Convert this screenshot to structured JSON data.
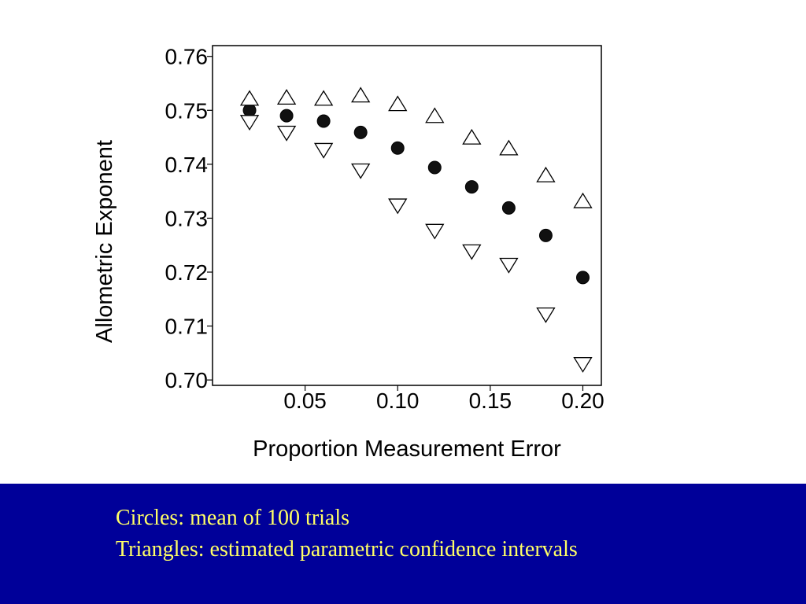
{
  "chart_data": {
    "type": "scatter",
    "title": "",
    "xlabel": "Proportion Measurement Error",
    "ylabel": "Allometric Exponent",
    "xlim": [
      0.0,
      0.21
    ],
    "ylim": [
      0.699,
      0.762
    ],
    "x_ticks": [
      0.05,
      0.1,
      0.15,
      0.2
    ],
    "x_tick_labels": [
      "0.05",
      "0.10",
      "0.15",
      "0.20"
    ],
    "y_ticks": [
      0.7,
      0.71,
      0.72,
      0.73,
      0.74,
      0.75,
      0.76
    ],
    "y_tick_labels": [
      "0.70",
      "0.71",
      "0.72",
      "0.73",
      "0.74",
      "0.75",
      "0.76"
    ],
    "grid": false,
    "legend": "none",
    "x": [
      0.02,
      0.04,
      0.06,
      0.08,
      0.1,
      0.12,
      0.14,
      0.16,
      0.18,
      0.2
    ],
    "series": [
      {
        "marker": "filled-circle",
        "values": [
          0.75,
          0.749,
          0.748,
          0.7459,
          0.743,
          0.7394,
          0.7358,
          0.7319,
          0.7268,
          0.719
        ]
      },
      {
        "marker": "up-triangle",
        "values": [
          0.752,
          0.7522,
          0.752,
          0.7526,
          0.751,
          0.7488,
          0.7448,
          0.7428,
          0.7378,
          0.733
        ]
      },
      {
        "marker": "down-triangle",
        "values": [
          0.748,
          0.746,
          0.7428,
          0.739,
          0.7325,
          0.7278,
          0.724,
          0.7215,
          0.7123,
          0.7031
        ]
      }
    ]
  },
  "footer": {
    "line1": "Circles: mean of 100 trials",
    "line2": "Triangles: estimated parametric confidence intervals",
    "background_color": "#000099",
    "text_color": "#ffff66"
  }
}
